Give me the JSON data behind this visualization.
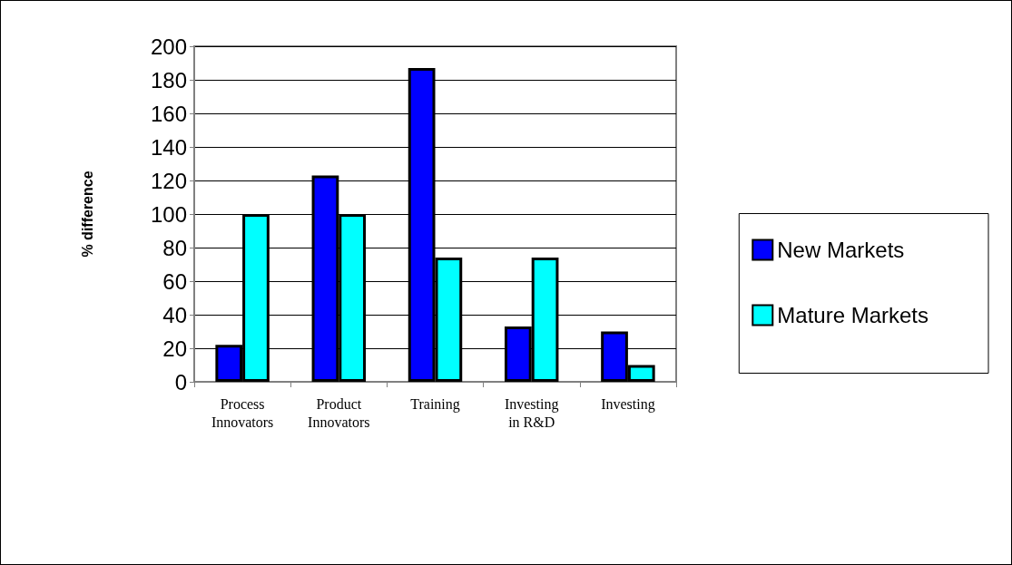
{
  "chart_data": {
    "type": "bar",
    "ylabel": "% difference",
    "categories": [
      "Process\nInnovators",
      "Product\nInnovators",
      "Training",
      "Investing\nin R&D",
      "Investing"
    ],
    "series": [
      {
        "name": "New Markets",
        "color": "#0000ff",
        "values": [
          22,
          123,
          187,
          33,
          30
        ]
      },
      {
        "name": "Mature Markets",
        "color": "#00ffff",
        "values": [
          100,
          100,
          74,
          74,
          10
        ]
      }
    ],
    "ylim": [
      0,
      200
    ],
    "yticks": [
      0,
      20,
      40,
      60,
      80,
      100,
      120,
      140,
      160,
      180,
      200
    ],
    "grid": "y",
    "legend": "right"
  }
}
